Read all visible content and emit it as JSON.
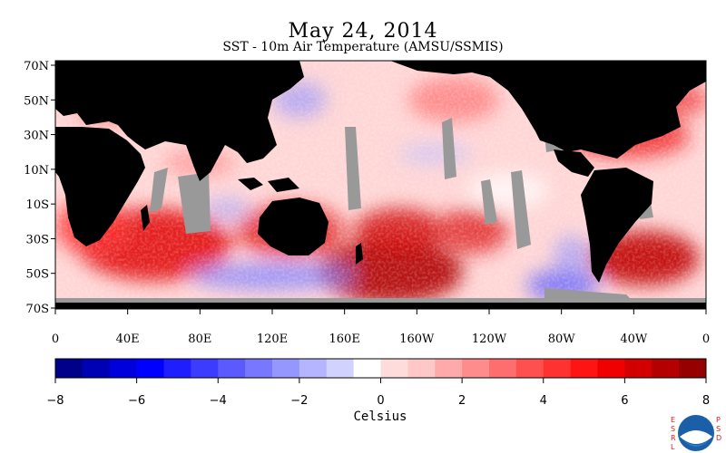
{
  "header": {
    "title": "May 24, 2014",
    "subtitle": "SST - 10m Air Temperature (AMSU/SSMIS)"
  },
  "map": {
    "lat_labels": [
      "70N",
      "50N",
      "30N",
      "10N",
      "10S",
      "30S",
      "50S",
      "70S"
    ],
    "lon_labels": [
      "0",
      "40E",
      "80E",
      "120E",
      "160E",
      "160W",
      "120W",
      "80W",
      "40W",
      "0"
    ],
    "land_color": "#000000",
    "missing_color": "#999999",
    "description_colors": {
      "warm": "#cc0000",
      "cool": "#3333ff"
    }
  },
  "colorbar": {
    "units": "Celsius",
    "tick_labels": [
      "-8",
      "-6",
      "-4",
      "-2",
      "0",
      "2",
      "4",
      "6",
      "8"
    ],
    "colors": [
      "#00008b",
      "#0000b4",
      "#0000dc",
      "#0000ff",
      "#1e1eff",
      "#3c3cff",
      "#5a5aff",
      "#7878ff",
      "#9696ff",
      "#b4b4ff",
      "#d2d2ff",
      "#ffffff",
      "#ffdcdc",
      "#ffc8c8",
      "#ffaaaa",
      "#ff8c8c",
      "#ff6e6e",
      "#ff5050",
      "#ff3232",
      "#ff1414",
      "#f00000",
      "#d20000",
      "#b40000",
      "#960000"
    ]
  },
  "logo": {
    "left_letters": "ESRL",
    "right_letters": "PSD",
    "emblem": "NOAA"
  }
}
